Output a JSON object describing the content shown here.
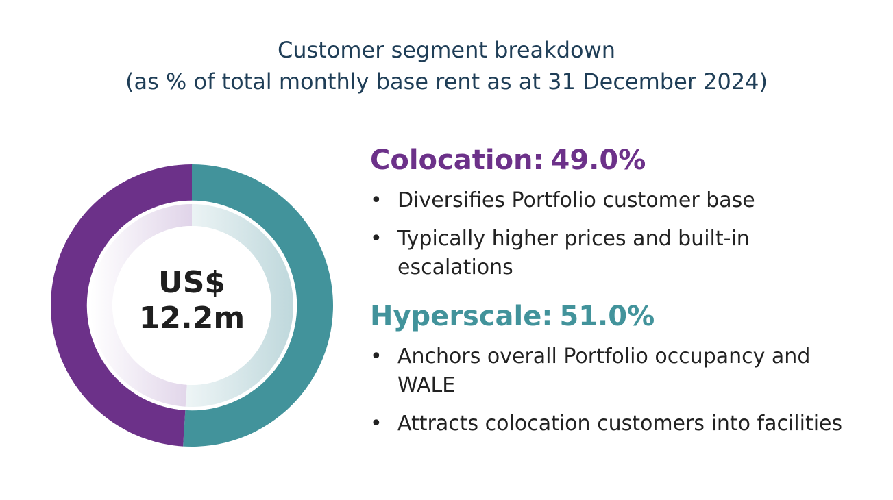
{
  "title": {
    "line1": "Customer segment breakdown",
    "line2": "(as % of total monthly base rent as at 31 December 2024)"
  },
  "chart_data": {
    "type": "pie",
    "title": "Customer segment breakdown (as % of total monthly base rent as at 31 December 2024)",
    "center_label": [
      "US$",
      "12.2m"
    ],
    "categories": [
      "Colocation",
      "Hyperscale"
    ],
    "values": [
      49.0,
      51.0
    ],
    "unit": "%",
    "colors": [
      "#6c3189",
      "#42939b"
    ]
  },
  "segments": [
    {
      "name": "Colocation:",
      "percent": "49.0%",
      "color": "#6c3189",
      "bullets": [
        "Diversifies Portfolio customer base",
        "Typically higher prices and built-in escalations"
      ]
    },
    {
      "name": "Hyperscale:",
      "percent": "51.0%",
      "color": "#42939b",
      "bullets": [
        "Anchors overall Portfolio occupancy and WALE",
        "Attracts colocation customers into facilities"
      ]
    }
  ]
}
